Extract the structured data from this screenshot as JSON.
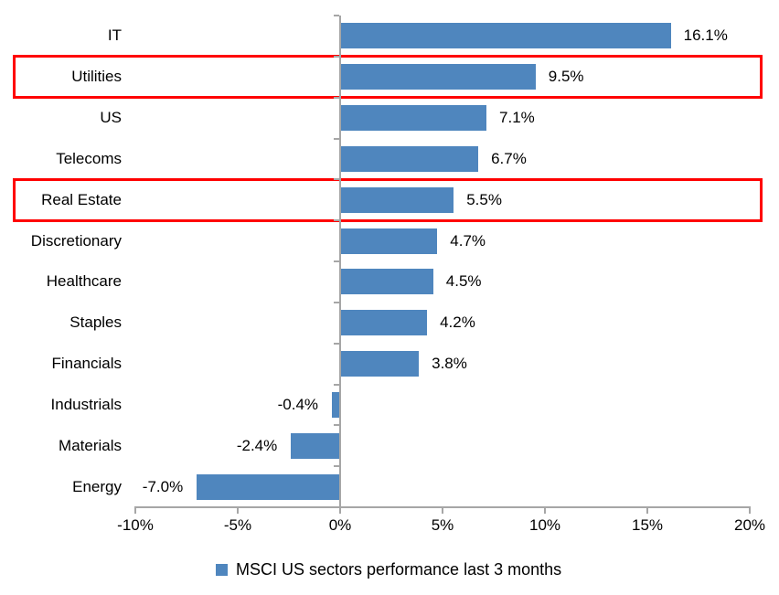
{
  "chart_data": {
    "type": "bar",
    "orientation": "horizontal",
    "title": "",
    "xlabel": "",
    "ylabel": "",
    "xlim": [
      -10,
      20
    ],
    "grid": false,
    "legend_position": "bottom-center",
    "categories": [
      "IT",
      "Utilities",
      "US",
      "Telecoms",
      "Real Estate",
      "Discretionary",
      "Healthcare",
      "Staples",
      "Financials",
      "Industrials",
      "Materials",
      "Energy"
    ],
    "values": [
      16.1,
      9.5,
      7.1,
      6.7,
      5.5,
      4.7,
      4.5,
      4.2,
      3.8,
      -0.4,
      -2.4,
      -7.0
    ],
    "value_labels": [
      "16.1%",
      "9.5%",
      "7.1%",
      "6.7%",
      "5.5%",
      "4.7%",
      "4.5%",
      "4.2%",
      "3.8%",
      "-0.4%",
      "-2.4%",
      "-7.0%"
    ],
    "highlighted_categories": [
      "Utilities",
      "Real Estate"
    ],
    "x_ticks": [
      {
        "value": -10,
        "label": "-10%"
      },
      {
        "value": -5,
        "label": "-5%"
      },
      {
        "value": 0,
        "label": "0%"
      },
      {
        "value": 5,
        "label": "5%"
      },
      {
        "value": 10,
        "label": "10%"
      },
      {
        "value": 15,
        "label": "15%"
      },
      {
        "value": 20,
        "label": "20%"
      }
    ],
    "legend": {
      "label": "MSCI US sectors performance last 3 months",
      "swatch_color": "#4F86BE"
    },
    "colors": {
      "bar": "#4F86BE",
      "highlight_border": "#FF0000",
      "axis": "#A6A6A6",
      "text": "#000000",
      "background": "#FFFFFF"
    }
  }
}
